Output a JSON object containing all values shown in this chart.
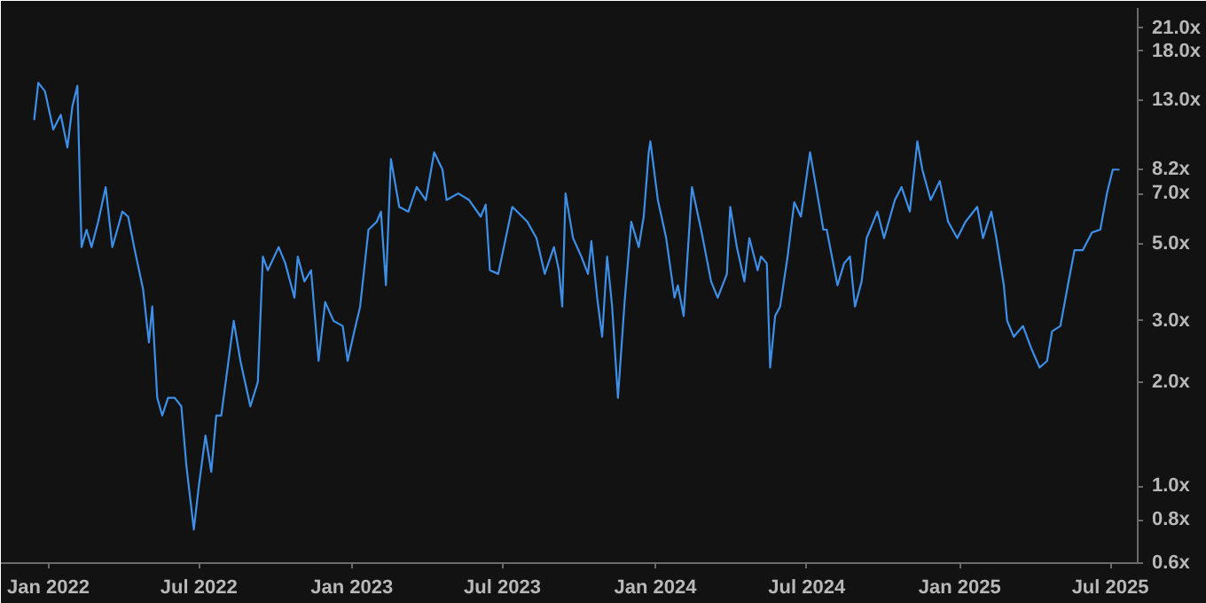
{
  "chart_data": {
    "type": "line",
    "log": "y",
    "xlim": [
      "2021-11-05",
      "2025-08-03"
    ],
    "xticks": [
      {
        "value": "2022-01-01",
        "label": "Jan 2022"
      },
      {
        "value": "2022-07-01",
        "label": "Jul 2022"
      },
      {
        "value": "2023-01-01",
        "label": "Jan 2023"
      },
      {
        "value": "2023-07-01",
        "label": "Jul 2023"
      },
      {
        "value": "2024-01-01",
        "label": "Jan 2024"
      },
      {
        "value": "2024-07-01",
        "label": "Jul 2024"
      },
      {
        "value": "2025-01-01",
        "label": "Jan 2025"
      },
      {
        "value": "2025-07-01",
        "label": "Jul 2025"
      }
    ],
    "ylim": [
      0.6,
      24
    ],
    "yticks": [
      {
        "value": 0.6,
        "label": "0.6x"
      },
      {
        "value": 0.8,
        "label": "0.8x"
      },
      {
        "value": 1.0,
        "label": "1.0x"
      },
      {
        "value": 2.0,
        "label": "2.0x"
      },
      {
        "value": 3.0,
        "label": "3.0x"
      },
      {
        "value": 5.0,
        "label": "5.0x"
      },
      {
        "value": 7.0,
        "label": "7.0x"
      },
      {
        "value": 8.2,
        "label": "8.2x"
      },
      {
        "value": 13.0,
        "label": "13.0x"
      },
      {
        "value": 18.0,
        "label": "18.0x"
      },
      {
        "value": 21.0,
        "label": "21.0x"
      }
    ],
    "series": [
      {
        "color": "#3d8fe8",
        "x": [
          "2021-12-15",
          "2021-12-20",
          "2021-12-28",
          "2022-01-07",
          "2022-01-16",
          "2022-01-24",
          "2022-01-30",
          "2022-02-05",
          "2022-02-10",
          "2022-02-16",
          "2022-02-22",
          "2022-03-02",
          "2022-03-11",
          "2022-03-19",
          "2022-03-25",
          "2022-03-31",
          "2022-04-07",
          "2022-04-15",
          "2022-04-25",
          "2022-05-02",
          "2022-05-06",
          "2022-05-12",
          "2022-05-18",
          "2022-05-25",
          "2022-06-02",
          "2022-06-10",
          "2022-06-16",
          "2022-06-25",
          "2022-07-01",
          "2022-07-09",
          "2022-07-16",
          "2022-07-22",
          "2022-07-28",
          "2022-08-12",
          "2022-08-20",
          "2022-09-01",
          "2022-09-10",
          "2022-09-16",
          "2022-09-22",
          "2022-10-05",
          "2022-10-13",
          "2022-10-24",
          "2022-10-28",
          "2022-11-05",
          "2022-11-13",
          "2022-11-22",
          "2022-11-30",
          "2022-12-10",
          "2022-12-21",
          "2022-12-27",
          "2023-01-04",
          "2023-01-11",
          "2023-01-21",
          "2023-01-31",
          "2023-02-05",
          "2023-02-11",
          "2023-02-17",
          "2023-02-27",
          "2023-03-10",
          "2023-03-20",
          "2023-03-31",
          "2023-04-10",
          "2023-04-20",
          "2023-04-25",
          "2023-05-09",
          "2023-05-22",
          "2023-06-05",
          "2023-06-11",
          "2023-06-16",
          "2023-06-26",
          "2023-07-13",
          "2023-07-31",
          "2023-08-11",
          "2023-08-21",
          "2023-09-01",
          "2023-09-07",
          "2023-09-11",
          "2023-09-15",
          "2023-09-24",
          "2023-10-04",
          "2023-10-12",
          "2023-10-16",
          "2023-10-23",
          "2023-10-29",
          "2023-11-04",
          "2023-11-10",
          "2023-11-17",
          "2023-11-25",
          "2023-12-03",
          "2023-12-12",
          "2023-12-18",
          "2023-12-24",
          "2023-12-26",
          "2024-01-04",
          "2024-01-14",
          "2024-01-24",
          "2024-01-28",
          "2024-02-04",
          "2024-02-14",
          "2024-02-25",
          "2024-03-08",
          "2024-03-16",
          "2024-03-27",
          "2024-03-31",
          "2024-04-08",
          "2024-04-17",
          "2024-04-23",
          "2024-05-03",
          "2024-05-07",
          "2024-05-14",
          "2024-05-18",
          "2024-05-24",
          "2024-05-30",
          "2024-06-08",
          "2024-06-16",
          "2024-06-24",
          "2024-07-05",
          "2024-07-11",
          "2024-07-21",
          "2024-07-25",
          "2024-08-07",
          "2024-08-15",
          "2024-08-22",
          "2024-08-28",
          "2024-09-05",
          "2024-09-11",
          "2024-09-24",
          "2024-10-02",
          "2024-10-15",
          "2024-10-23",
          "2024-11-02",
          "2024-11-11",
          "2024-11-17",
          "2024-11-27",
          "2024-12-08",
          "2024-12-18",
          "2024-12-29",
          "2025-01-08",
          "2025-01-22",
          "2025-01-29",
          "2025-02-08",
          "2025-02-14",
          "2025-02-23",
          "2025-02-27",
          "2025-03-07",
          "2025-03-18",
          "2025-03-28",
          "2025-04-07",
          "2025-04-16",
          "2025-04-22",
          "2025-05-02",
          "2025-05-11",
          "2025-05-19",
          "2025-05-29",
          "2025-06-09",
          "2025-06-19",
          "2025-06-27",
          "2025-07-04",
          "2025-07-12"
        ],
        "values": [
          11.4,
          14.6,
          13.8,
          10.7,
          11.8,
          9.5,
          12.5,
          14.3,
          4.9,
          5.5,
          4.9,
          5.8,
          7.3,
          4.9,
          5.5,
          6.2,
          6.0,
          4.8,
          3.7,
          2.6,
          3.3,
          1.8,
          1.6,
          1.8,
          1.8,
          1.7,
          1.15,
          0.75,
          1.0,
          1.4,
          1.1,
          1.6,
          1.6,
          3.0,
          2.3,
          1.7,
          2.0,
          4.6,
          4.2,
          4.9,
          4.4,
          3.5,
          4.6,
          3.9,
          4.2,
          2.3,
          3.4,
          3.0,
          2.9,
          2.3,
          2.8,
          3.3,
          5.5,
          5.8,
          6.2,
          3.8,
          8.8,
          6.4,
          6.2,
          7.3,
          6.7,
          9.2,
          8.2,
          6.7,
          7.0,
          6.7,
          6.0,
          6.5,
          4.2,
          4.1,
          6.4,
          5.8,
          5.2,
          4.1,
          4.9,
          4.2,
          3.3,
          7.0,
          5.2,
          4.6,
          4.1,
          5.1,
          3.5,
          2.7,
          4.6,
          3.3,
          1.8,
          3.4,
          5.8,
          4.9,
          6.0,
          9.2,
          9.9,
          6.7,
          5.2,
          3.5,
          3.8,
          3.1,
          7.3,
          5.5,
          3.9,
          3.5,
          4.1,
          6.4,
          4.9,
          3.9,
          5.2,
          4.2,
          4.6,
          4.4,
          2.2,
          3.1,
          3.3,
          4.6,
          6.6,
          6.0,
          9.2,
          7.6,
          5.5,
          5.5,
          3.8,
          4.4,
          4.6,
          3.3,
          3.9,
          5.2,
          6.2,
          5.2,
          6.7,
          7.3,
          6.2,
          9.9,
          8.2,
          6.7,
          7.6,
          5.8,
          5.2,
          5.8,
          6.4,
          5.2,
          6.2,
          5.2,
          3.8,
          3.0,
          2.7,
          2.9,
          2.5,
          2.2,
          2.3,
          2.8,
          2.9,
          3.8,
          4.8,
          4.8,
          5.4,
          5.5,
          7.0,
          8.2,
          8.2
        ]
      }
    ]
  }
}
